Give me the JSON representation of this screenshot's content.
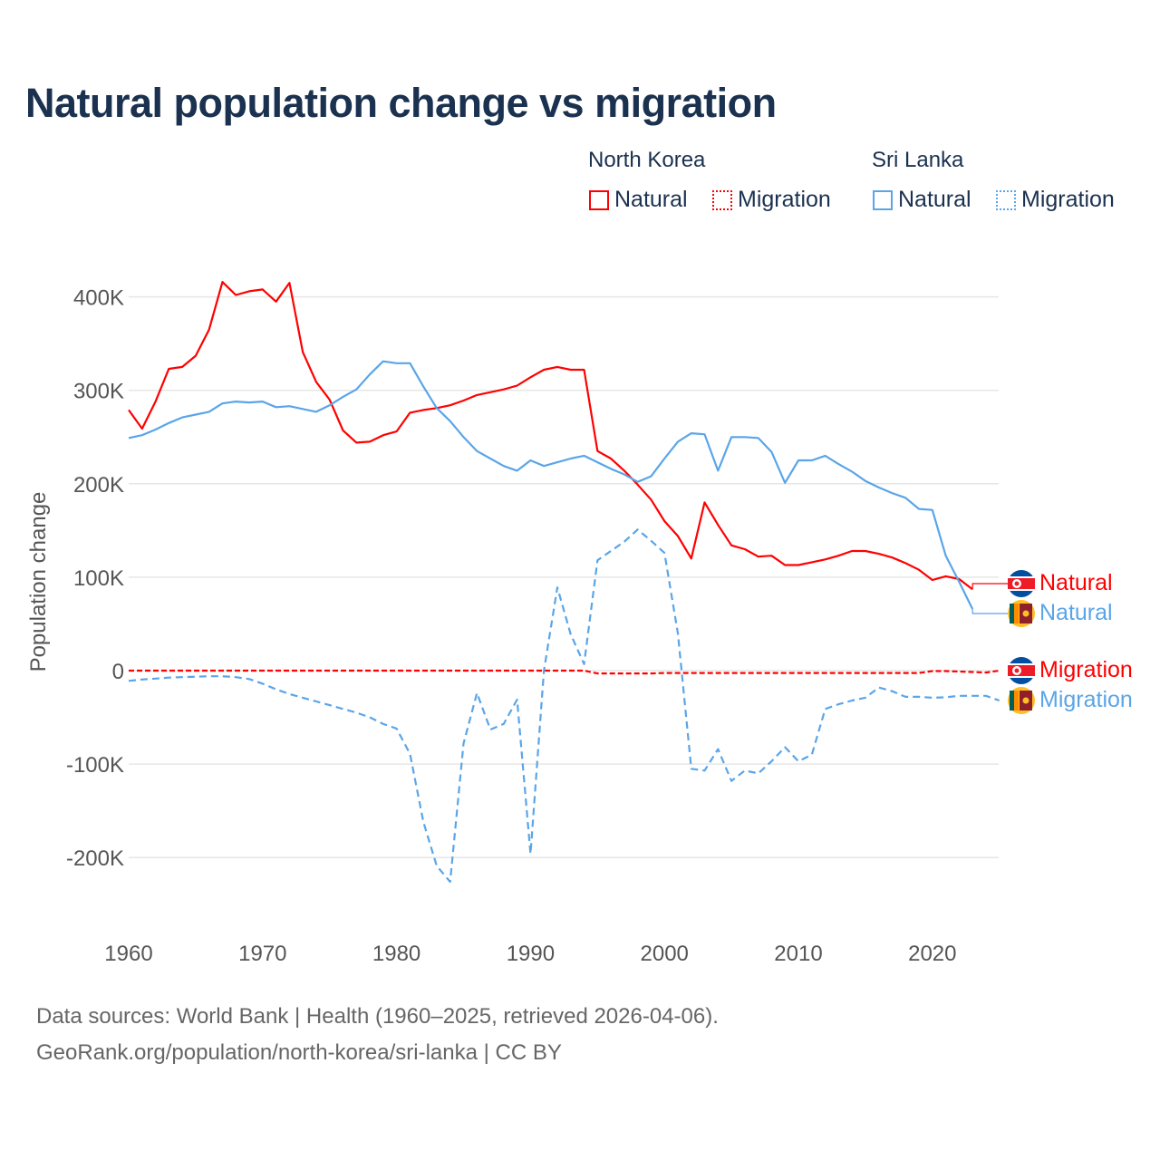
{
  "title": "Natural population change vs migration",
  "legend": {
    "groups": [
      {
        "name": "North Korea",
        "items": [
          "Natural",
          "Migration"
        ],
        "color": "#ff0000"
      },
      {
        "name": "Sri Lanka",
        "items": [
          "Natural",
          "Migration"
        ],
        "color": "#5aa5e8"
      }
    ]
  },
  "end_labels": [
    {
      "text": "Natural",
      "flag": "north-korea-flag-icon",
      "color": "#ff0000"
    },
    {
      "text": "Natural",
      "flag": "sri-lanka-flag-icon",
      "color": "#5aa5e8"
    },
    {
      "text": "Migration",
      "flag": "north-korea-flag-icon",
      "color": "#ff0000"
    },
    {
      "text": "Migration",
      "flag": "sri-lanka-flag-icon",
      "color": "#5aa5e8"
    }
  ],
  "footer": {
    "line1": "Data sources: World Bank | Health (1960–2025, retrieved 2026-04-06).",
    "line2": "GeoRank.org/population/north-korea/sri-lanka | CC BY"
  },
  "chart_data": {
    "type": "line",
    "title": "Natural population change vs migration",
    "xlabel": "",
    "ylabel": "Population change",
    "xlim": [
      1960,
      2025
    ],
    "ylim": [
      -250000,
      430000
    ],
    "x_ticks": [
      1960,
      1970,
      1980,
      1990,
      2000,
      2010,
      2020
    ],
    "x_tick_labels": [
      "1960",
      "1970",
      "1980",
      "1990",
      "2000",
      "2010",
      "2020"
    ],
    "y_ticks": [
      -200000,
      -100000,
      0,
      100000,
      200000,
      300000,
      400000
    ],
    "y_tick_labels": [
      "-200K",
      "-100K",
      "0",
      "100K",
      "200K",
      "300K",
      "400K"
    ],
    "grid": true,
    "legend_position": "top-right",
    "series": [
      {
        "name": "North Korea Natural",
        "color": "#ff0000",
        "dash": "solid",
        "start_year": 1960,
        "unit": "thousands",
        "values": [
          279,
          259,
          288,
          323,
          325,
          337,
          365,
          416,
          402,
          406,
          408,
          395,
          415,
          341,
          309,
          290,
          257,
          244,
          245,
          252,
          256,
          276,
          279,
          281,
          284,
          289,
          295,
          298,
          301,
          305,
          314,
          322,
          325,
          322,
          322,
          235,
          227,
          214,
          199,
          183,
          160,
          144,
          120,
          180,
          156,
          134,
          130,
          122,
          123,
          113,
          113,
          116,
          119,
          123,
          128,
          128,
          125,
          121,
          115,
          108,
          97,
          101,
          98,
          87
        ]
      },
      {
        "name": "Sri Lanka Natural",
        "color": "#5aa5e8",
        "dash": "solid",
        "start_year": 1960,
        "unit": "thousands",
        "values": [
          249,
          252,
          258,
          265,
          271,
          274,
          277,
          286,
          288,
          287,
          288,
          282,
          283,
          280,
          277,
          284,
          293,
          301,
          317,
          331,
          329,
          329,
          304,
          281,
          267,
          250,
          235,
          227,
          219,
          214,
          225,
          219,
          223,
          227,
          230,
          223,
          216,
          210,
          202,
          208,
          227,
          245,
          254,
          253,
          214,
          250,
          250,
          249,
          234,
          201,
          225,
          225,
          230,
          221,
          213,
          203,
          196,
          190,
          185,
          173,
          172,
          123,
          95,
          66
        ]
      },
      {
        "name": "North Korea Migration",
        "color": "#ff0000",
        "dash": "dashed",
        "start_year": 1960,
        "unit": "thousands",
        "values": [
          0,
          0,
          0,
          0,
          0,
          0,
          0,
          0,
          0,
          0,
          0,
          0,
          0,
          0,
          0,
          0,
          0,
          0,
          0,
          0,
          0,
          0,
          0,
          0,
          0,
          0,
          0,
          0,
          0,
          0,
          0,
          0,
          0,
          0,
          0,
          -3,
          -3,
          -3,
          -3,
          -3,
          -2.5,
          -2.5,
          -2.5,
          -2.5,
          -2.5,
          -2.5,
          -2.5,
          -2.5,
          -2.5,
          -2.5,
          -2.5,
          -2.5,
          -2.5,
          -2.5,
          -2.5,
          -2.5,
          -2.5,
          -2.5,
          -2.5,
          -2.5,
          -0.5,
          -0.5,
          -1,
          -1.5,
          -2,
          0
        ]
      },
      {
        "name": "Sri Lanka Migration",
        "color": "#5aa5e8",
        "dash": "dashed",
        "start_year": 1960,
        "unit": "thousands",
        "values": [
          -11,
          -9.5,
          -8.5,
          -7.5,
          -7,
          -6.5,
          -6,
          -6,
          -7,
          -9,
          -14,
          -20,
          -25,
          -29,
          -33,
          -37,
          -41,
          -45,
          -50,
          -57,
          -62,
          -89,
          -162,
          -209,
          -226,
          -78,
          -24,
          -63,
          -57,
          -31,
          -196,
          0,
          89,
          39,
          7,
          118,
          128,
          138,
          151,
          139,
          126,
          40,
          -105,
          -107,
          -84,
          -118,
          -107,
          -110,
          -97,
          -82,
          -97,
          -90,
          -41,
          -36,
          -32,
          -29,
          -18,
          -22,
          -28,
          -28,
          -29,
          -28.5,
          -27,
          -27,
          -27,
          -32
        ]
      }
    ]
  }
}
